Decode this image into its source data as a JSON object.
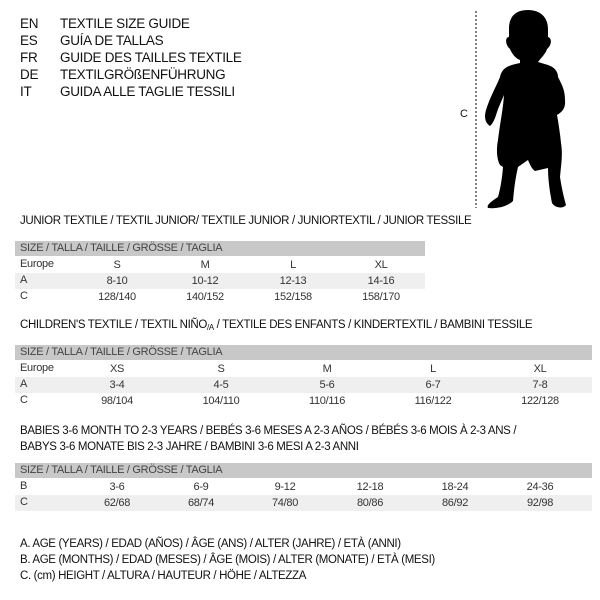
{
  "header": {
    "languages": [
      {
        "code": "EN",
        "label": "TEXTILE SIZE GUIDE"
      },
      {
        "code": "ES",
        "label": "GUÍA DE TALLAS"
      },
      {
        "code": "FR",
        "label": "GUIDE DES TAILLES TEXTILE"
      },
      {
        "code": "DE",
        "label": "TEXTILGRÖßENFÜHRUNG"
      },
      {
        "code": "IT",
        "label": "GUIDA ALLE TAGLIE TESSILI"
      }
    ]
  },
  "figure": {
    "measure_label": "C",
    "icon": "child-silhouette"
  },
  "junior": {
    "title": "JUNIOR TEXTILE / TEXTIL JUNIOR/ TEXTILE JUNIOR / JUNIORTEXTIL / JUNIOR TESSILE",
    "header": "SIZE / TALLA / TAILLE / GRÖSSE / TAGLIA",
    "rows": [
      {
        "label": "Europe",
        "values": [
          "S",
          "M",
          "L",
          "XL"
        ]
      },
      {
        "label": "A",
        "values": [
          "8-10",
          "10-12",
          "12-13",
          "14-16"
        ]
      },
      {
        "label": "C",
        "values": [
          "128/140",
          "140/152",
          "152/158",
          "158/170"
        ]
      }
    ]
  },
  "children": {
    "title_before": "CHILDREN'S TEXTILE / TEXTIL NIÑO",
    "title_sub": "/A",
    "title_after": " / TEXTILE DES ENFANTS / KINDERTEXTIL / BAMBINI TESSILE",
    "header": "SIZE / TALLA / TAILLE / GRÖSSE / TAGLIA",
    "rows": [
      {
        "label": "Europe",
        "values": [
          "XS",
          "S",
          "M",
          "L",
          "XL"
        ]
      },
      {
        "label": "A",
        "values": [
          "3-4",
          "4-5",
          "5-6",
          "6-7",
          "7-8"
        ]
      },
      {
        "label": "C",
        "values": [
          "98/104",
          "104/110",
          "110/116",
          "116/122",
          "122/128"
        ]
      }
    ]
  },
  "babies": {
    "title_line1": "BABIES 3-6 MONTH TO 2-3 YEARS / BEBÉS 3-6 MESES A 2-3 AÑOS / BÉBÉS 3-6 MOIS À 2-3 ANS /",
    "title_line2": "BABYS 3-6 MONATE BIS 2-3 JAHRE / BAMBINI 3-6 MESI A 2-3 ANNI",
    "header": "SIZE / TALLA / TAILLE / GRÖSSE / TAGLIA",
    "rows": [
      {
        "label": "B",
        "values": [
          "3-6",
          "6-9",
          "9-12",
          "12-18",
          "18-24",
          "24-36"
        ]
      },
      {
        "label": "C",
        "values": [
          "62/68",
          "68/74",
          "74/80",
          "80/86",
          "86/92",
          "92/98"
        ]
      }
    ]
  },
  "legend": [
    "A. AGE (YEARS) / EDAD (AÑOS) / ÂGE (ANS) / ALTER (JAHRE) / ETÀ (ANNI)",
    "B. AGE (MONTHS) / EDAD (MESES) / ÂGE (MOIS) / ALTER (MONATE) / ETÀ (MESI)",
    "C. (cm) HEIGHT / ALTURA / HAUTEUR / HÖHE / ALTEZZA"
  ]
}
